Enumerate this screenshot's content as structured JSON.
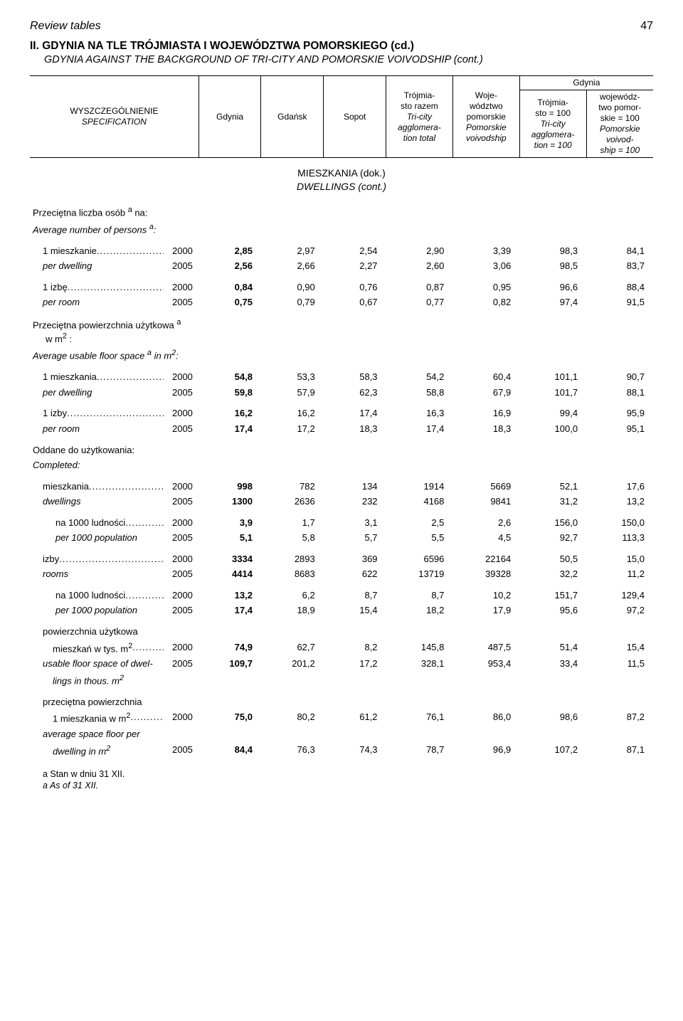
{
  "header": {
    "left": "Review tables",
    "pageno": "47"
  },
  "title": {
    "main": "II. GDYNIA NA TLE TRÓJMIASTA I WOJEWÓDZTWA POMORSKIEGO (cd.)",
    "sub": "GDYNIA AGAINST THE BACKGROUND OF TRI-CITY AND POMORSKIE VOIVODSHIP (cont.)"
  },
  "columns": {
    "spec_pl": "WYSZCZEGÓLNIENIE",
    "spec_en": "SPECIFICATION",
    "gdynia": "Gdynia",
    "gdansk": "Gdańsk",
    "sopot": "Sopot",
    "tri_sum_pl": "Trójmia-\nsto razem",
    "tri_sum_en1": "Tri-city",
    "tri_sum_en2": "agglomera-\ntion total",
    "woj_pl": "Woje-\nwództwo\npomorskie",
    "woj_en": "Pomorskie\nvoivodship",
    "group": "Gdynia",
    "tri_idx_pl": "Trójmia-\nsto = 100",
    "tri_idx_en": "Tri-city\nagglomera-\ntion = 100",
    "woj_idx_pl": "wojewódz-\ntwo pomor-\nskie = 100",
    "woj_idx_en": "Pomorskie\nvoivod-\nship = 100"
  },
  "section": {
    "main": "MIESZKANIA (dok.)",
    "sub": "DWELLINGS (cont.)"
  },
  "block_avg_persons": {
    "pl_fragment1": "Przeciętna liczba osób ",
    "pl_sup": "a",
    "pl_fragment2": " na:",
    "en_fragment1": "Average number of persons ",
    "en_sup": "a",
    "en_fragment2": ":"
  },
  "rows_avg_persons": [
    {
      "label_pl": "1 mieszkanie",
      "label_en": "per dwelling",
      "y": [
        "2000",
        "2005"
      ],
      "vals": [
        [
          "2,85",
          "2,97",
          "2,54",
          "2,90",
          "3,39",
          "98,3",
          "84,1"
        ],
        [
          "2,56",
          "2,66",
          "2,27",
          "2,60",
          "3,06",
          "98,5",
          "83,7"
        ]
      ]
    },
    {
      "label_pl": "1 izbę",
      "label_en": "per room",
      "y": [
        "2000",
        "2005"
      ],
      "vals": [
        [
          "0,84",
          "0,90",
          "0,76",
          "0,87",
          "0,95",
          "96,6",
          "88,4"
        ],
        [
          "0,75",
          "0,79",
          "0,67",
          "0,77",
          "0,82",
          "97,4",
          "91,5"
        ]
      ]
    }
  ],
  "block_avg_floor": {
    "pl_line1a": "Przeciętna powierzchnia użytkowa ",
    "pl_sup": "a",
    "pl_line2": "w m",
    "pl_line2_sup": "2",
    "pl_line2_end": " :",
    "en_line_a": "Average usable floor space ",
    "en_sup_a": "a",
    "en_line_b": " in m",
    "en_sup_b": "2",
    "en_line_c": ":"
  },
  "rows_avg_floor": [
    {
      "label_pl": "1 mieszkania",
      "label_en": "per dwelling",
      "y": [
        "2000",
        "2005"
      ],
      "vals": [
        [
          "54,8",
          "53,3",
          "58,3",
          "54,2",
          "60,4",
          "101,1",
          "90,7"
        ],
        [
          "59,8",
          "57,9",
          "62,3",
          "58,8",
          "67,9",
          "101,7",
          "88,1"
        ]
      ]
    },
    {
      "label_pl": "1 izby",
      "label_en": "per room",
      "y": [
        "2000",
        "2005"
      ],
      "vals": [
        [
          "16,2",
          "16,2",
          "17,4",
          "16,3",
          "16,9",
          "99,4",
          "95,9"
        ],
        [
          "17,4",
          "17,2",
          "18,3",
          "17,4",
          "18,3",
          "100,0",
          "95,1"
        ]
      ]
    }
  ],
  "block_completed": {
    "pl": "Oddane do użytkowania:",
    "en": "Completed:"
  },
  "rows_completed": [
    {
      "label_pl": "mieszkania",
      "label_en": "dwellings",
      "indent": 1,
      "y": [
        "2000",
        "2005"
      ],
      "vals": [
        [
          "998",
          "782",
          "134",
          "1914",
          "5669",
          "52,1",
          "17,6"
        ],
        [
          "1300",
          "2636",
          "232",
          "4168",
          "9841",
          "31,2",
          "13,2"
        ]
      ]
    },
    {
      "label_pl": "na 1000 ludności",
      "label_en": "per 1000 population",
      "indent": 2,
      "y": [
        "2000",
        "2005"
      ],
      "vals": [
        [
          "3,9",
          "1,7",
          "3,1",
          "2,5",
          "2,6",
          "156,0",
          "150,0"
        ],
        [
          "5,1",
          "5,8",
          "5,7",
          "5,5",
          "4,5",
          "92,7",
          "113,3"
        ]
      ]
    },
    {
      "label_pl": "izby",
      "label_en": "rooms",
      "indent": 1,
      "y": [
        "2000",
        "2005"
      ],
      "vals": [
        [
          "3334",
          "2893",
          "369",
          "6596",
          "22164",
          "50,5",
          "15,0"
        ],
        [
          "4414",
          "8683",
          "622",
          "13719",
          "39328",
          "32,2",
          "11,2"
        ]
      ]
    },
    {
      "label_pl": "na 1000 ludności",
      "label_en": "per 1000 population",
      "indent": 2,
      "y": [
        "2000",
        "2005"
      ],
      "vals": [
        [
          "13,2",
          "6,2",
          "8,7",
          "8,7",
          "10,2",
          "151,7",
          "129,4"
        ],
        [
          "17,4",
          "18,9",
          "15,4",
          "18,2",
          "17,9",
          "95,6",
          "97,2"
        ]
      ]
    }
  ],
  "row_usable_floor": {
    "pl_l1": "powierzchnia użytkowa",
    "pl_l2a": "mieszkań w tys. m",
    "pl_l2_sup": "2",
    "en_l1": "usable floor space of dwel-",
    "en_l2a": "lings in thous. m",
    "en_l2_sup": "2",
    "y": [
      "2000",
      "2005"
    ],
    "vals": [
      [
        "74,9",
        "62,7",
        "8,2",
        "145,8",
        "487,5",
        "51,4",
        "15,4"
      ],
      [
        "109,7",
        "201,2",
        "17,2",
        "328,1",
        "953,4",
        "33,4",
        "11,5"
      ]
    ]
  },
  "row_avg_space_dwelling": {
    "pl_l1": "przeciętna powierzchnia",
    "pl_l2a": "1 mieszkania w m",
    "pl_l2_sup": "2",
    "en_l1": "average space floor per",
    "en_l2a": "dwelling in m",
    "en_l2_sup": "2",
    "y": [
      "2000",
      "2005"
    ],
    "vals": [
      [
        "75,0",
        "80,2",
        "61,2",
        "76,1",
        "86,0",
        "98,6",
        "87,2"
      ],
      [
        "84,4",
        "76,3",
        "74,3",
        "78,7",
        "96,9",
        "107,2",
        "87,1"
      ]
    ]
  },
  "footnotes": {
    "a_pl": "a Stan w dniu 31 XII.",
    "a_en": "a As of 31 XII."
  }
}
